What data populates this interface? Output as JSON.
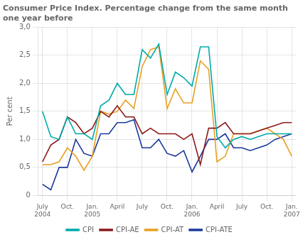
{
  "chart_data": {
    "type": "line",
    "title": "Consumer Price Index. Percentage change from the same month\none year before",
    "y_label": "Per cent",
    "categories": [
      "July\n2004",
      null,
      null,
      "Oct.",
      null,
      null,
      "Jan.\n2005",
      null,
      null,
      "April",
      null,
      null,
      "July",
      null,
      null,
      "Oct.",
      null,
      null,
      "Jan.\n2006",
      null,
      null,
      "April",
      null,
      null,
      "July",
      null,
      null,
      "Oct.",
      null,
      null,
      "Jan.\n2007"
    ],
    "series": [
      {
        "name": "CPI",
        "color": "#00aaaa",
        "values": [
          1.5,
          1.05,
          1.0,
          1.4,
          1.1,
          1.1,
          1.0,
          1.6,
          1.7,
          2.0,
          1.8,
          1.8,
          2.6,
          2.45,
          2.7,
          1.8,
          2.2,
          2.1,
          1.95,
          2.65,
          2.65,
          1.05,
          0.85,
          1.0,
          1.05,
          1.0,
          1.05,
          1.1,
          1.1,
          1.1,
          1.1
        ]
      },
      {
        "name": "CPI-AE",
        "color": "#8b1a1a",
        "values": [
          0.6,
          0.9,
          1.0,
          1.4,
          1.3,
          1.1,
          1.2,
          1.5,
          1.4,
          1.6,
          1.4,
          1.4,
          1.1,
          1.2,
          1.1,
          1.1,
          1.1,
          1.0,
          1.1,
          0.55,
          1.2,
          1.2,
          1.3,
          1.1,
          1.1,
          1.1,
          1.15,
          1.2,
          1.25,
          1.3,
          1.3
        ]
      },
      {
        "name": "CPI-AT",
        "color": "#e8a020",
        "values": [
          0.55,
          0.55,
          0.6,
          0.85,
          0.7,
          0.45,
          0.7,
          1.5,
          1.45,
          1.5,
          1.7,
          1.55,
          2.3,
          2.6,
          2.65,
          1.55,
          1.9,
          1.65,
          1.65,
          2.4,
          2.25,
          0.6,
          0.7,
          1.1,
          1.1,
          1.1,
          1.15,
          1.2,
          1.1,
          1.0,
          0.7
        ]
      },
      {
        "name": "CPI-ATE",
        "color": "#1a3a9c",
        "values": [
          0.2,
          0.1,
          0.5,
          0.5,
          1.0,
          0.75,
          0.7,
          1.1,
          1.1,
          1.3,
          1.3,
          1.35,
          0.85,
          0.85,
          1.0,
          0.75,
          0.7,
          0.8,
          0.42,
          0.7,
          1.0,
          1.0,
          1.1,
          0.85,
          0.85,
          0.8,
          0.85,
          0.9,
          1.0,
          1.05,
          1.1
        ]
      }
    ],
    "ylim": [
      0,
      3.0
    ],
    "yticks": [
      0,
      {
        "value": 0.5,
        "label": "0,5"
      },
      {
        "value": 1.0,
        "label": "1,0"
      },
      {
        "value": 1.5,
        "label": "1,5"
      },
      {
        "value": 2.0,
        "label": "2,0"
      },
      {
        "value": 2.5,
        "label": "2,5"
      },
      {
        "value": 3.0,
        "label": "3,0"
      }
    ],
    "grid": true,
    "legend": "bottom"
  }
}
